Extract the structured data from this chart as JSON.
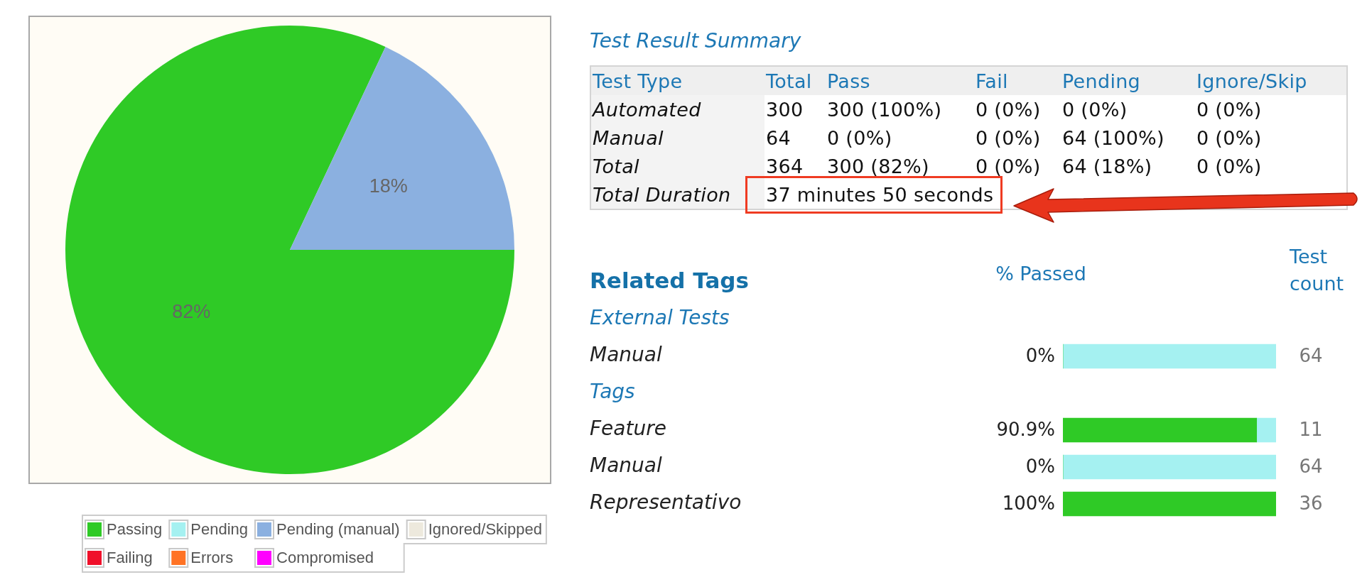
{
  "chart_data": [
    {
      "type": "pie",
      "categories": [
        "Passing",
        "Pending",
        "Pending (manual)",
        "Ignored/Skipped",
        "Failing",
        "Errors",
        "Compromised"
      ],
      "values": [
        82,
        0,
        18,
        0,
        0,
        0,
        0
      ],
      "colors": [
        "#2fca26",
        "#a5f1f1",
        "#8bb0e0",
        "#ede9dd",
        "#f0102a",
        "#ff7325",
        "#ff00ff"
      ],
      "value_labels": [
        "82%",
        null,
        "18%",
        null,
        null,
        null,
        null
      ],
      "legend": "bottom"
    },
    {
      "type": "other",
      "title": "Test Result Summary",
      "annotations": [
        "Test Type",
        "Total",
        "Pass",
        "Fail",
        "Pending",
        "Ignore/Skip",
        "Automated",
        "300",
        "300 (100%)",
        "0 (0%)",
        "0 (0%)",
        "0 (0%)",
        "Manual",
        "64",
        "0 (0%)",
        "0 (0%)",
        "64 (100%)",
        "0 (0%)",
        "Total",
        "364",
        "300 (82%)",
        "0 (0%)",
        "64 (18%)",
        "0 (0%)",
        "Total Duration",
        "37 minutes 50 seconds"
      ]
    },
    {
      "type": "bar",
      "orientation": "horizontal",
      "stacked": true,
      "title": "Related Tags",
      "annotations": [
        "% Passed",
        "Test count",
        "64",
        "11",
        "64",
        "36"
      ],
      "categories": [
        "External Tests",
        "Manual",
        "Tags",
        "Feature",
        "Manual",
        "Representativo"
      ],
      "series": [
        {
          "color": "#2fca26",
          "values": [
            null,
            0,
            null,
            90.9,
            0,
            100
          ],
          "value_labels": [
            null,
            "0%",
            null,
            "90.9%",
            "0%",
            "100%"
          ]
        },
        {
          "color": "#a5f1f1",
          "values": [
            null,
            100,
            null,
            9.1,
            100,
            0
          ]
        }
      ],
      "xlim": [
        0,
        100
      ],
      "tick_labels": "y"
    }
  ]
}
